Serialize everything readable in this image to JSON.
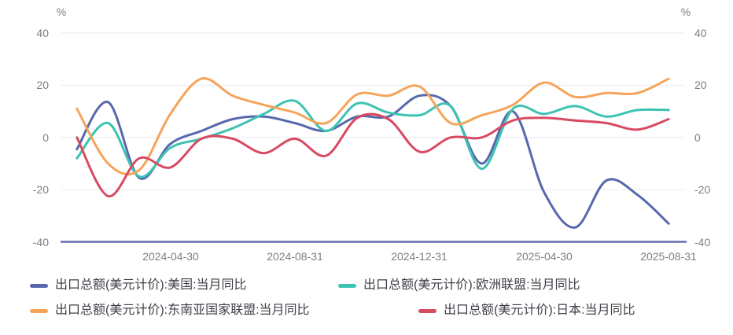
{
  "chart": {
    "unit_left": "%",
    "unit_right": "%",
    "grid_color": "#eaeaf2",
    "axis_line_color": "#666cab",
    "tick_label_color": "#7b7e85",
    "legend_text_color": "#3d4047",
    "background": "#ffffff"
  },
  "chart_data": {
    "type": "line",
    "smooth": true,
    "grid": true,
    "legend_position": "bottom",
    "ylabel": "%",
    "ylim": [
      -40,
      40
    ],
    "y_ticks": [
      40,
      20,
      0,
      -20,
      -40
    ],
    "x": [
      "2024-01-31",
      "2024-02-29",
      "2024-03-31",
      "2024-04-30",
      "2024-05-31",
      "2024-06-30",
      "2024-07-31",
      "2024-08-31",
      "2024-09-30",
      "2024-10-31",
      "2024-11-30",
      "2024-12-31",
      "2025-01-31",
      "2025-02-28",
      "2025-03-31",
      "2025-04-30",
      "2025-05-31",
      "2025-06-30",
      "2025-07-31",
      "2025-08-31"
    ],
    "x_tick_labels": [
      "2024-04-30",
      "2024-08-31",
      "2024-12-31",
      "2025-04-30",
      "2025-08-31"
    ],
    "x_tick_indices": [
      3,
      7,
      11,
      15,
      19
    ],
    "series": [
      {
        "name": "出口总额(美元计价):美国:当月同比",
        "color": "#5868ad",
        "values": [
          -4.5,
          13.5,
          -15.5,
          -2.5,
          2.5,
          7,
          8,
          5.5,
          2.5,
          8,
          8,
          16,
          12,
          -10,
          10,
          -21,
          -34.5,
          -16.5,
          -22,
          -33
        ]
      },
      {
        "name": "出口总额(美元计价):欧洲联盟:当月同比",
        "color": "#3cc3b1",
        "values": [
          -8,
          5.5,
          -15,
          -4,
          -0.5,
          3.5,
          9,
          14,
          2.5,
          13,
          9.5,
          8.5,
          12,
          -12,
          11,
          9,
          12,
          8,
          10.5,
          10.5
        ]
      },
      {
        "name": "出口总额(美元计价):东南亚国家联盟:当月同比",
        "color": "#f6a45a",
        "values": [
          11,
          -10,
          -12.5,
          9,
          22.5,
          16,
          12.5,
          9.5,
          5.5,
          16.5,
          16,
          19.5,
          5.5,
          8.5,
          12.5,
          21,
          15.5,
          17,
          17,
          22.5
        ]
      },
      {
        "name": "出口总额(美元计价):日本:当月同比",
        "color": "#d84a63",
        "values": [
          0,
          -22.5,
          -8,
          -11.5,
          -0.5,
          -0.5,
          -6,
          -0.5,
          -7,
          7.5,
          7,
          -5.5,
          0,
          0,
          6.5,
          7.5,
          6.5,
          5.5,
          3,
          7
        ]
      }
    ]
  }
}
